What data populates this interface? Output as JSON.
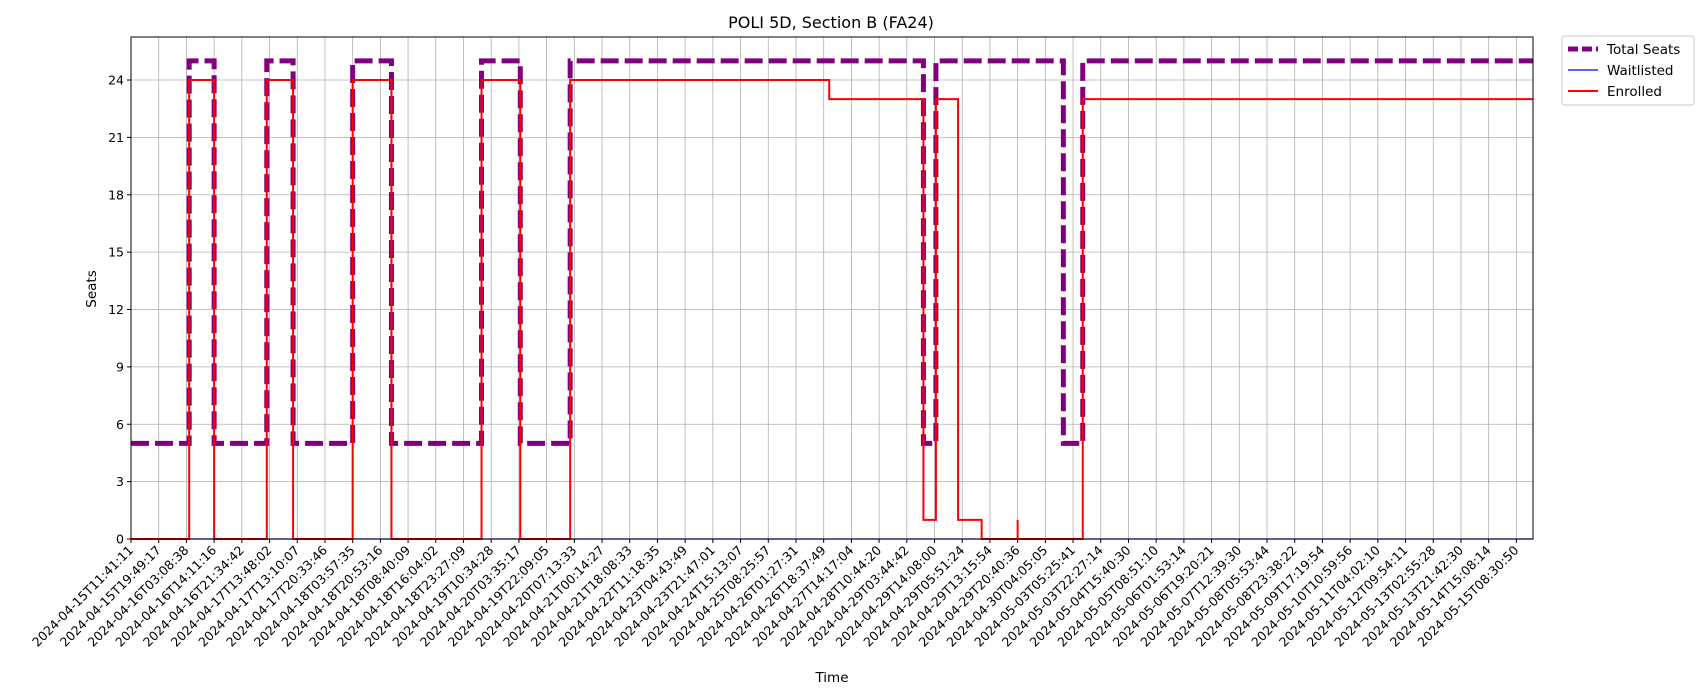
{
  "chart_data": {
    "type": "line",
    "title": "POLI 5D, Section B (FA24)",
    "xlabel": "Time",
    "ylabel": "Seats",
    "ylim": [
      0,
      26.25
    ],
    "yticks": [
      0,
      3,
      6,
      9,
      12,
      15,
      18,
      21,
      24
    ],
    "grid": true,
    "legend_position": "outside-top-right",
    "x_tick_labels": [
      "2024-04-15T11:41:11",
      "2024-04-15T19:49:17",
      "2024-04-16T03:08:38",
      "2024-04-16T14:11:16",
      "2024-04-16T21:34:42",
      "2024-04-17T13:48:02",
      "2024-04-17T13:10:07",
      "2024-04-17T20:33:46",
      "2024-04-18T03:57:35",
      "2024-04-18T20:53:16",
      "2024-04-18T08:40:09",
      "2024-04-18T16:04:02",
      "2024-04-18T23:27:09",
      "2024-04-19T10:34:28",
      "2024-04-20T03:35:17",
      "2024-04-19T22:09:05",
      "2024-04-20T07:13:33",
      "2024-04-21T00:14:27",
      "2024-04-21T18:08:33",
      "2024-04-22T11:18:35",
      "2024-04-23T04:43:49",
      "2024-04-23T21:47:01",
      "2024-04-24T15:13:07",
      "2024-04-25T08:25:57",
      "2024-04-26T01:27:31",
      "2024-04-26T18:37:49",
      "2024-04-27T14:17:04",
      "2024-04-28T10:44:20",
      "2024-04-29T03:44:42",
      "2024-04-29T14:08:00",
      "2024-04-29T05:51:24",
      "2024-04-29T13:15:54",
      "2024-04-29T20:40:36",
      "2024-04-30T04:05:05",
      "2024-05-03T05:25:41",
      "2024-05-03T22:27:14",
      "2024-05-04T15:40:30",
      "2024-05-05T08:51:10",
      "2024-05-06T01:53:14",
      "2024-05-06T19:20:21",
      "2024-05-07T12:39:30",
      "2024-05-08T05:53:44",
      "2024-05-08T23:38:22",
      "2024-05-09T17:19:54",
      "2024-05-10T10:59:56",
      "2024-05-11T04:02:10",
      "2024-05-12T09:54:11",
      "2024-05-13T02:55:28",
      "2024-05-13T21:42:30",
      "2024-05-14T15:08:14",
      "2024-05-15T08:30:50"
    ],
    "x_range": [
      0,
      50.6
    ],
    "series": [
      {
        "name": "Total Seats",
        "color": "#800080",
        "style": "dashed",
        "x": [
          0,
          2.1,
          2.1,
          3.0,
          3.0,
          4.9,
          4.9,
          5.85,
          5.85,
          8.0,
          8.0,
          9.4,
          9.4,
          12.65,
          12.65,
          14.05,
          14.05,
          15.85,
          15.85,
          28.6,
          28.6,
          29.05,
          29.05,
          29.85,
          29.85,
          33.65,
          33.65,
          34.35,
          34.35,
          50.6
        ],
        "y": [
          5,
          5,
          25,
          25,
          5,
          5,
          25,
          25,
          5,
          5,
          25,
          25,
          5,
          5,
          25,
          25,
          5,
          5,
          25,
          25,
          5,
          5,
          25,
          25,
          25,
          25,
          5,
          5,
          25,
          25
        ]
      },
      {
        "name": "Waitlisted",
        "color": "#0000ff",
        "style": "solid",
        "x": [
          0,
          50.6
        ],
        "y": [
          0,
          0
        ]
      },
      {
        "name": "Enrolled",
        "color": "#ff0000",
        "style": "solid",
        "x": [
          0,
          2.1,
          2.1,
          3.0,
          3.0,
          4.9,
          4.9,
          5.85,
          5.85,
          8.0,
          8.0,
          9.4,
          9.4,
          12.65,
          12.65,
          14.05,
          14.05,
          15.85,
          15.85,
          25.2,
          25.2,
          28.6,
          28.6,
          29.05,
          29.05,
          29.85,
          29.85,
          30.7,
          30.7,
          32.0,
          32.0,
          32.0,
          32.0,
          34.35,
          34.35,
          50.6
        ],
        "y": [
          0,
          0,
          24,
          24,
          0,
          0,
          24,
          24,
          0,
          0,
          24,
          24,
          0,
          0,
          24,
          24,
          0,
          0,
          24,
          24,
          23,
          23,
          1,
          1,
          23,
          23,
          1,
          1,
          0,
          0,
          1,
          1,
          0,
          0,
          23,
          23
        ]
      }
    ],
    "legend": [
      "Total Seats",
      "Waitlisted",
      "Enrolled"
    ]
  }
}
